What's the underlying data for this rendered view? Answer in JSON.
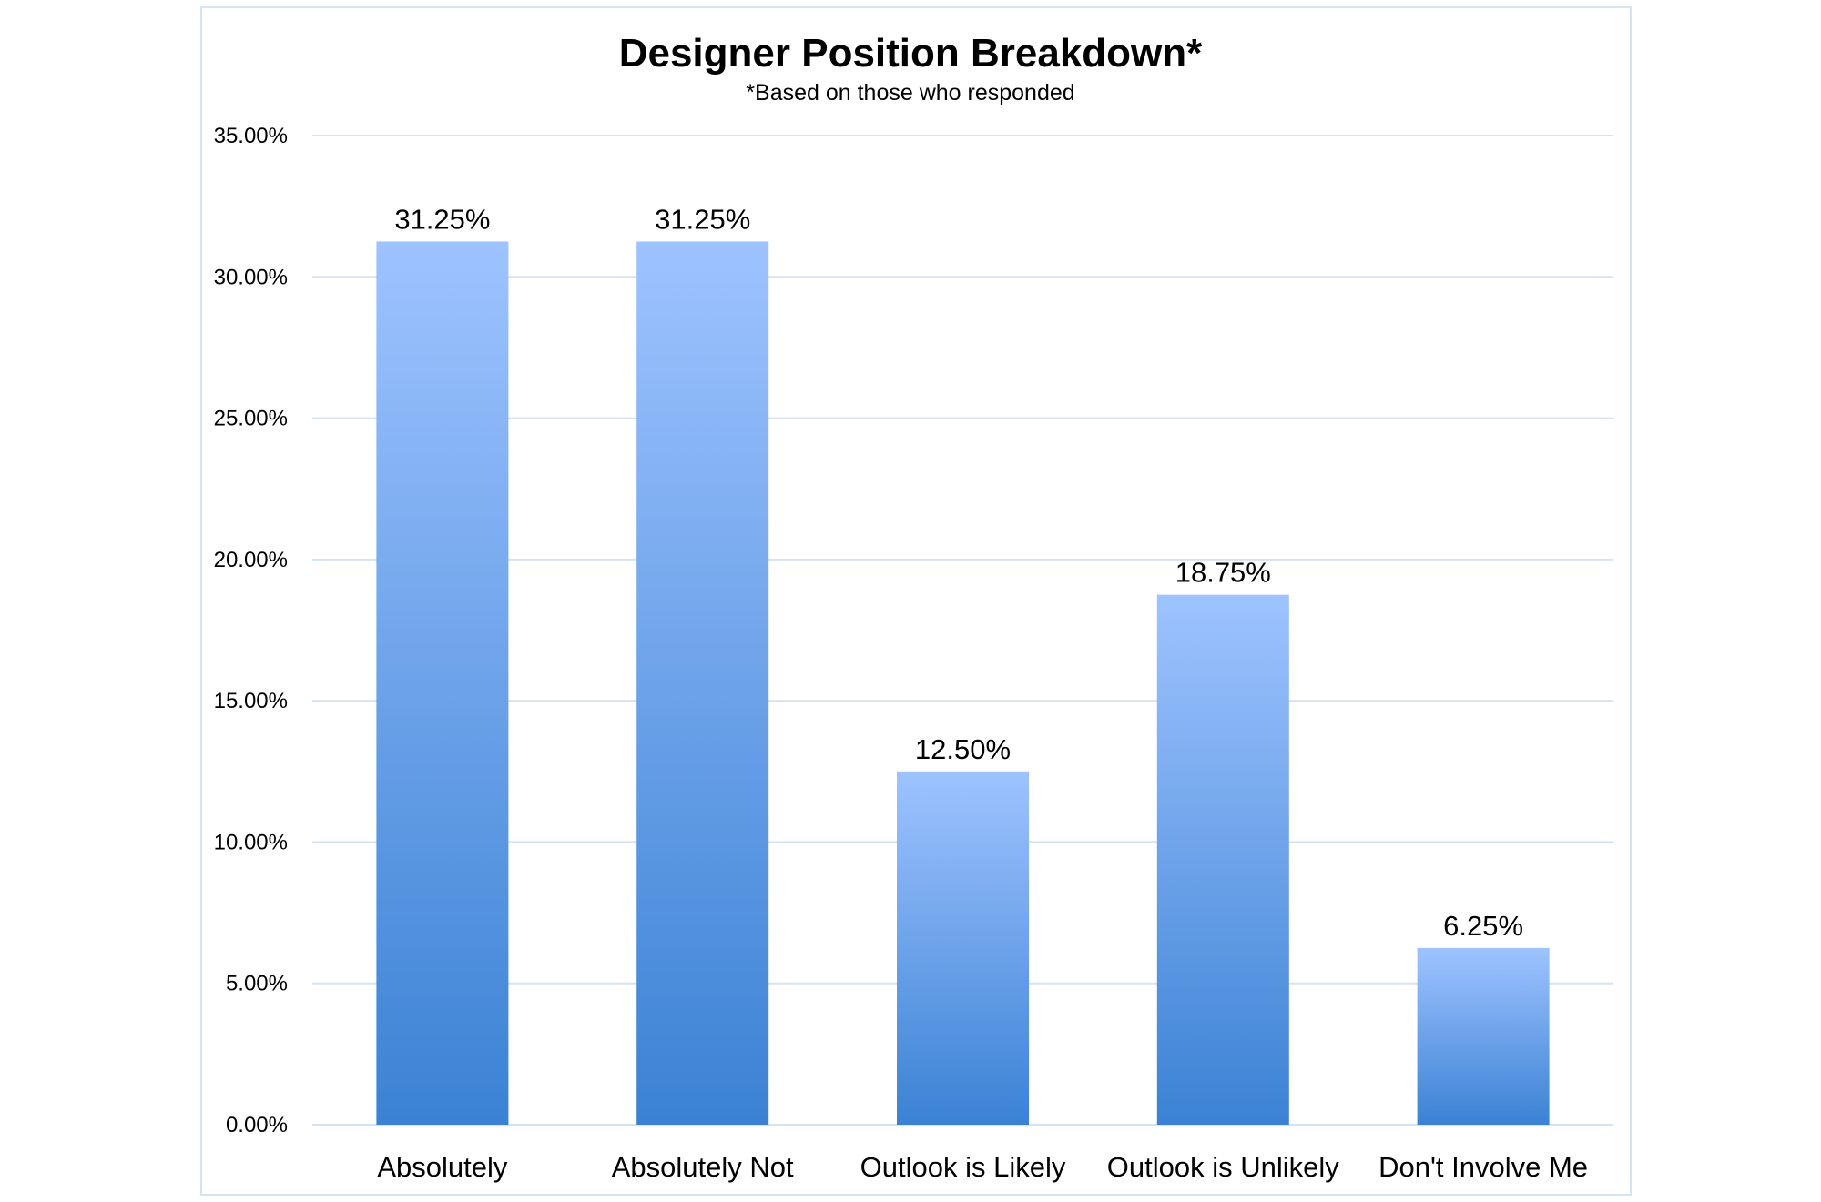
{
  "chart_data": {
    "type": "bar",
    "title": "Designer Position Breakdown*",
    "subtitle": "*Based on those who responded",
    "categories": [
      "Absolutely",
      "Absolutely Not",
      "Outlook  is Likely",
      "Outlook  is Unlikely",
      "Don't Involve Me"
    ],
    "values": [
      31.25,
      31.25,
      12.5,
      18.75,
      6.25
    ],
    "data_labels": [
      "31.25%",
      "31.25%",
      "12.50%",
      "18.75%",
      "6.25%"
    ],
    "ylim": [
      0,
      35
    ],
    "y_ticks": [
      0,
      5,
      10,
      15,
      20,
      25,
      30,
      35
    ],
    "y_tick_labels": [
      "0.00%",
      "5.00%",
      "10.00%",
      "15.00%",
      "20.00%",
      "25.00%",
      "30.00%",
      "35.00%"
    ],
    "grid": true,
    "legend": "none",
    "colors": {
      "bar_top": "#9ec3ff",
      "bar_bottom": "#3b82d4",
      "grid": "#d5e2f0",
      "frame": "#d6e3f3"
    }
  }
}
